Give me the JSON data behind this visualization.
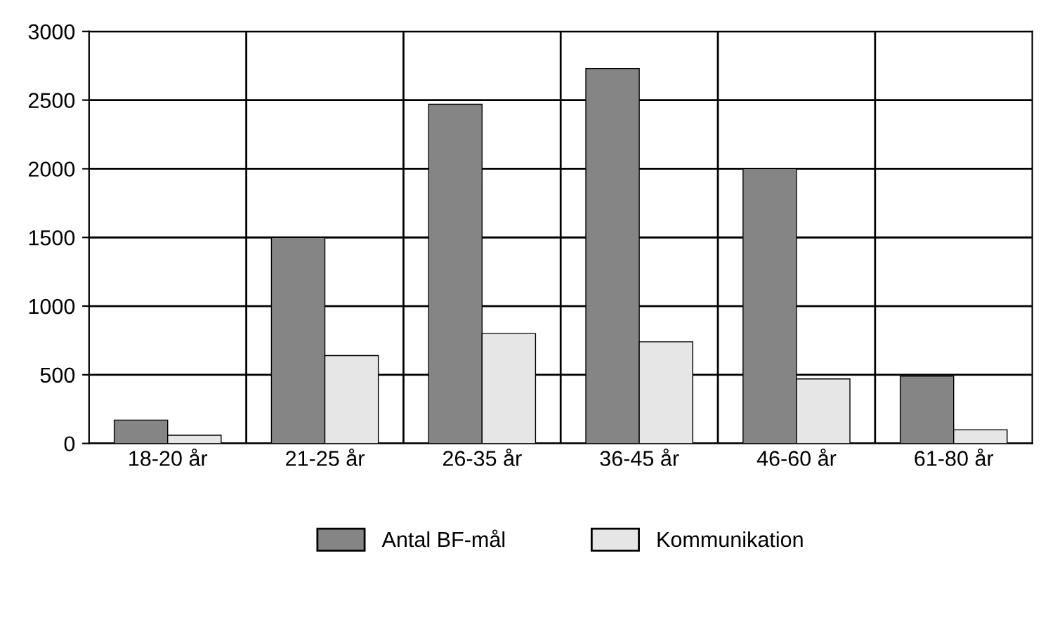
{
  "chart_data": {
    "type": "bar",
    "categories": [
      "18-20 år",
      "21-25 år",
      "26-35 år",
      "36-45 år",
      "46-60 år",
      "61-80 år"
    ],
    "series": [
      {
        "name": "Antal BF-mål",
        "color": "#858585",
        "values": [
          170,
          1500,
          2470,
          2730,
          2000,
          490
        ]
      },
      {
        "name": "Kommunikation",
        "color": "#e6e6e6",
        "values": [
          60,
          640,
          800,
          740,
          470,
          100
        ]
      }
    ],
    "ylim": [
      0,
      3000
    ],
    "yticks": [
      0,
      500,
      1000,
      1500,
      2000,
      2500,
      3000
    ],
    "grid": true,
    "legend": "bottom"
  }
}
